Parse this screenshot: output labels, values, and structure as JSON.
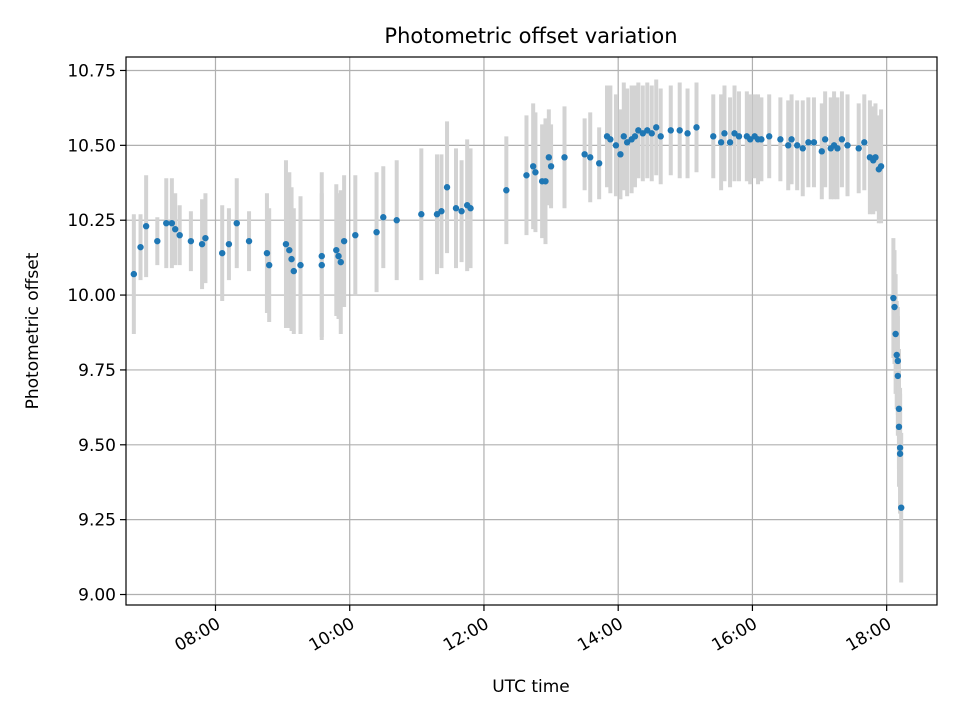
{
  "chart_data": {
    "type": "scatter",
    "title": "Photometric offset variation",
    "xlabel": "UTC time",
    "ylabel": "Photometric offset",
    "xlim": [
      "06:40",
      "18:45"
    ],
    "ylim": [
      8.965,
      10.795
    ],
    "x_ticks": [
      "08:00",
      "10:00",
      "12:00",
      "14:00",
      "16:00",
      "18:00"
    ],
    "y_ticks": [
      "9.00",
      "9.25",
      "9.50",
      "9.75",
      "10.00",
      "10.25",
      "10.50",
      "10.75"
    ],
    "grid": true,
    "colors": {
      "point": "#1f77b4",
      "errorbar": "#d3d3d3",
      "grid": "#b0b0b0"
    },
    "points": [
      {
        "x": "06:47",
        "y": 10.07,
        "err": 0.2
      },
      {
        "x": "06:53",
        "y": 10.16,
        "err": 0.11
      },
      {
        "x": "06:58",
        "y": 10.23,
        "err": 0.17
      },
      {
        "x": "07:08",
        "y": 10.18,
        "err": 0.08
      },
      {
        "x": "07:16",
        "y": 10.24,
        "err": 0.15
      },
      {
        "x": "07:21",
        "y": 10.24,
        "err": 0.15
      },
      {
        "x": "07:24",
        "y": 10.22,
        "err": 0.12
      },
      {
        "x": "07:28",
        "y": 10.2,
        "err": 0.1
      },
      {
        "x": "07:38",
        "y": 10.18,
        "err": 0.1
      },
      {
        "x": "07:48",
        "y": 10.17,
        "err": 0.15
      },
      {
        "x": "07:51",
        "y": 10.19,
        "err": 0.15
      },
      {
        "x": "08:06",
        "y": 10.14,
        "err": 0.16
      },
      {
        "x": "08:12",
        "y": 10.17,
        "err": 0.12
      },
      {
        "x": "08:19",
        "y": 10.24,
        "err": 0.15
      },
      {
        "x": "08:30",
        "y": 10.18,
        "err": 0.1
      },
      {
        "x": "08:46",
        "y": 10.14,
        "err": 0.2
      },
      {
        "x": "08:48",
        "y": 10.1,
        "err": 0.19
      },
      {
        "x": "09:03",
        "y": 10.17,
        "err": 0.28
      },
      {
        "x": "09:06",
        "y": 10.15,
        "err": 0.26
      },
      {
        "x": "09:08",
        "y": 10.12,
        "err": 0.24
      },
      {
        "x": "09:10",
        "y": 10.08,
        "err": 0.21
      },
      {
        "x": "09:16",
        "y": 10.1,
        "err": 0.23
      },
      {
        "x": "09:35",
        "y": 10.13,
        "err": 0.28
      },
      {
        "x": "09:35",
        "y": 10.1,
        "err": 0.24
      },
      {
        "x": "09:48",
        "y": 10.15,
        "err": 0.22
      },
      {
        "x": "09:50",
        "y": 10.13,
        "err": 0.21
      },
      {
        "x": "09:52",
        "y": 10.11,
        "err": 0.24
      },
      {
        "x": "09:55",
        "y": 10.18,
        "err": 0.22
      },
      {
        "x": "10:05",
        "y": 10.2,
        "err": 0.2
      },
      {
        "x": "10:24",
        "y": 10.21,
        "err": 0.2
      },
      {
        "x": "10:30",
        "y": 10.26,
        "err": 0.17
      },
      {
        "x": "10:42",
        "y": 10.25,
        "err": 0.2
      },
      {
        "x": "11:04",
        "y": 10.27,
        "err": 0.22
      },
      {
        "x": "11:18",
        "y": 10.27,
        "err": 0.2
      },
      {
        "x": "11:22",
        "y": 10.28,
        "err": 0.19
      },
      {
        "x": "11:27",
        "y": 10.36,
        "err": 0.22
      },
      {
        "x": "11:35",
        "y": 10.29,
        "err": 0.2
      },
      {
        "x": "11:40",
        "y": 10.28,
        "err": 0.17
      },
      {
        "x": "11:45",
        "y": 10.3,
        "err": 0.22
      },
      {
        "x": "11:48",
        "y": 10.29,
        "err": 0.2
      },
      {
        "x": "12:20",
        "y": 10.35,
        "err": 0.18
      },
      {
        "x": "12:38",
        "y": 10.4,
        "err": 0.2
      },
      {
        "x": "12:44",
        "y": 10.43,
        "err": 0.21
      },
      {
        "x": "12:46",
        "y": 10.41,
        "err": 0.2
      },
      {
        "x": "12:52",
        "y": 10.38,
        "err": 0.19
      },
      {
        "x": "12:55",
        "y": 10.38,
        "err": 0.21
      },
      {
        "x": "12:58",
        "y": 10.46,
        "err": 0.16
      },
      {
        "x": "13:00",
        "y": 10.43,
        "err": 0.14
      },
      {
        "x": "13:12",
        "y": 10.46,
        "err": 0.17
      },
      {
        "x": "13:30",
        "y": 10.47,
        "err": 0.12
      },
      {
        "x": "13:35",
        "y": 10.46,
        "err": 0.15
      },
      {
        "x": "13:43",
        "y": 10.44,
        "err": 0.12
      },
      {
        "x": "13:50",
        "y": 10.53,
        "err": 0.17
      },
      {
        "x": "13:53",
        "y": 10.52,
        "err": 0.18
      },
      {
        "x": "13:58",
        "y": 10.5,
        "err": 0.17
      },
      {
        "x": "14:02",
        "y": 10.47,
        "err": 0.15
      },
      {
        "x": "14:05",
        "y": 10.53,
        "err": 0.18
      },
      {
        "x": "14:08",
        "y": 10.51,
        "err": 0.18
      },
      {
        "x": "14:12",
        "y": 10.52,
        "err": 0.18
      },
      {
        "x": "14:15",
        "y": 10.53,
        "err": 0.17
      },
      {
        "x": "14:18",
        "y": 10.55,
        "err": 0.16
      },
      {
        "x": "14:22",
        "y": 10.54,
        "err": 0.16
      },
      {
        "x": "14:26",
        "y": 10.55,
        "err": 0.16
      },
      {
        "x": "14:30",
        "y": 10.54,
        "err": 0.16
      },
      {
        "x": "14:34",
        "y": 10.56,
        "err": 0.16
      },
      {
        "x": "14:38",
        "y": 10.53,
        "err": 0.16
      },
      {
        "x": "14:47",
        "y": 10.55,
        "err": 0.15
      },
      {
        "x": "14:55",
        "y": 10.55,
        "err": 0.16
      },
      {
        "x": "15:02",
        "y": 10.54,
        "err": 0.15
      },
      {
        "x": "15:10",
        "y": 10.56,
        "err": 0.15
      },
      {
        "x": "15:25",
        "y": 10.53,
        "err": 0.14
      },
      {
        "x": "15:32",
        "y": 10.51,
        "err": 0.16
      },
      {
        "x": "15:35",
        "y": 10.54,
        "err": 0.16
      },
      {
        "x": "15:40",
        "y": 10.51,
        "err": 0.15
      },
      {
        "x": "15:44",
        "y": 10.54,
        "err": 0.16
      },
      {
        "x": "15:48",
        "y": 10.53,
        "err": 0.15
      },
      {
        "x": "15:55",
        "y": 10.53,
        "err": 0.15
      },
      {
        "x": "15:58",
        "y": 10.52,
        "err": 0.15
      },
      {
        "x": "16:02",
        "y": 10.53,
        "err": 0.14
      },
      {
        "x": "16:05",
        "y": 10.52,
        "err": 0.15
      },
      {
        "x": "16:08",
        "y": 10.52,
        "err": 0.14
      },
      {
        "x": "16:15",
        "y": 10.53,
        "err": 0.14
      },
      {
        "x": "16:25",
        "y": 10.52,
        "err": 0.14
      },
      {
        "x": "16:32",
        "y": 10.5,
        "err": 0.15
      },
      {
        "x": "16:35",
        "y": 10.52,
        "err": 0.15
      },
      {
        "x": "16:40",
        "y": 10.5,
        "err": 0.15
      },
      {
        "x": "16:45",
        "y": 10.49,
        "err": 0.16
      },
      {
        "x": "16:50",
        "y": 10.51,
        "err": 0.15
      },
      {
        "x": "16:55",
        "y": 10.51,
        "err": 0.15
      },
      {
        "x": "17:02",
        "y": 10.48,
        "err": 0.16
      },
      {
        "x": "17:05",
        "y": 10.52,
        "err": 0.16
      },
      {
        "x": "17:10",
        "y": 10.49,
        "err": 0.17
      },
      {
        "x": "17:13",
        "y": 10.5,
        "err": 0.18
      },
      {
        "x": "17:16",
        "y": 10.49,
        "err": 0.17
      },
      {
        "x": "17:20",
        "y": 10.52,
        "err": 0.16
      },
      {
        "x": "17:25",
        "y": 10.5,
        "err": 0.17
      },
      {
        "x": "17:35",
        "y": 10.49,
        "err": 0.15
      },
      {
        "x": "17:40",
        "y": 10.51,
        "err": 0.16
      },
      {
        "x": "17:45",
        "y": 10.46,
        "err": 0.19
      },
      {
        "x": "17:48",
        "y": 10.45,
        "err": 0.18
      },
      {
        "x": "17:50",
        "y": 10.46,
        "err": 0.18
      },
      {
        "x": "17:53",
        "y": 10.42,
        "err": 0.18
      },
      {
        "x": "17:55",
        "y": 10.43,
        "err": 0.19
      },
      {
        "x": "18:06",
        "y": 9.99,
        "err": 0.2
      },
      {
        "x": "18:07",
        "y": 9.96,
        "err": 0.19
      },
      {
        "x": "18:08",
        "y": 9.87,
        "err": 0.2
      },
      {
        "x": "18:09",
        "y": 9.8,
        "err": 0.18
      },
      {
        "x": "18:10",
        "y": 9.73,
        "err": 0.2
      },
      {
        "x": "18:10",
        "y": 9.78,
        "err": 0.18
      },
      {
        "x": "18:11",
        "y": 9.62,
        "err": 0.2
      },
      {
        "x": "18:11",
        "y": 9.56,
        "err": 0.2
      },
      {
        "x": "18:12",
        "y": 9.49,
        "err": 0.2
      },
      {
        "x": "18:12",
        "y": 9.47,
        "err": 0.2
      },
      {
        "x": "18:13",
        "y": 9.29,
        "err": 0.25
      }
    ]
  }
}
